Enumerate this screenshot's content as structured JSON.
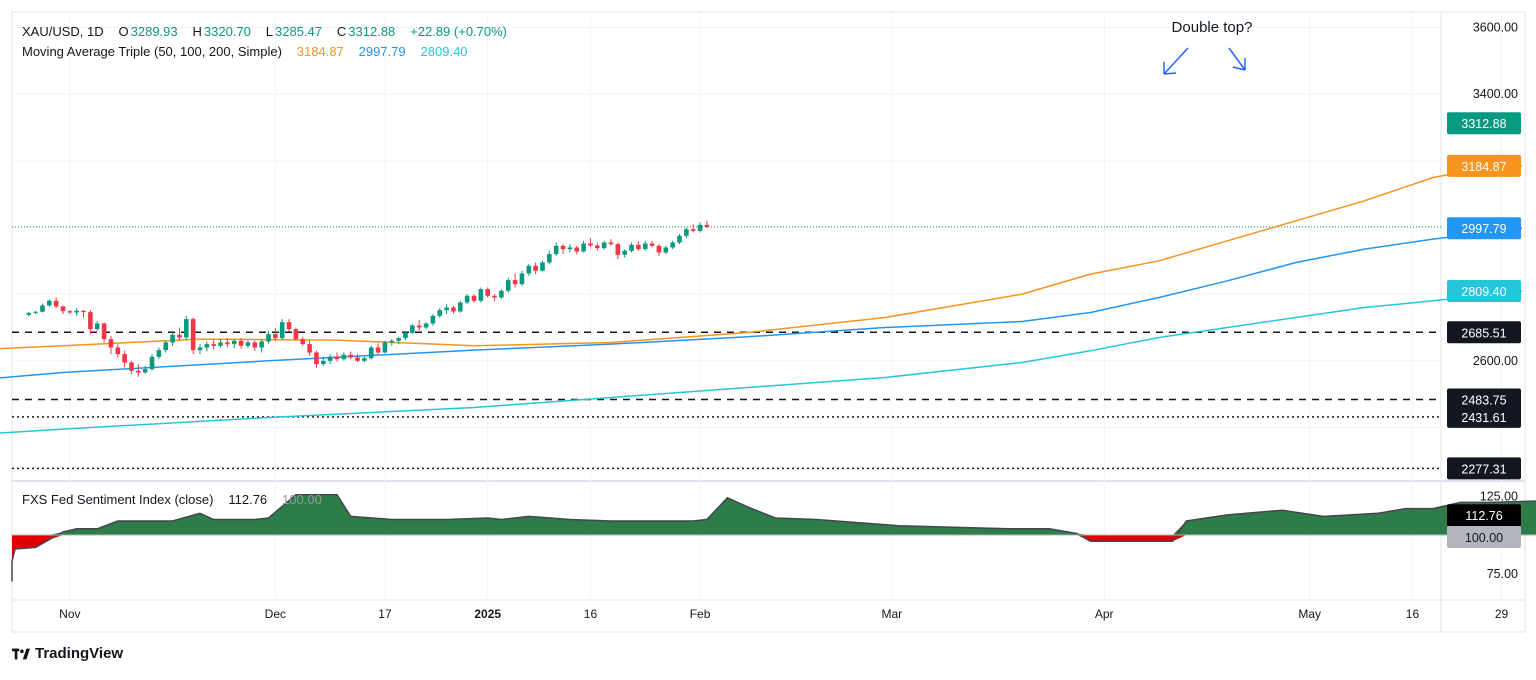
{
  "header": {
    "symbol": "XAU/USD, 1D",
    "o_label": "O",
    "o": "3289.93",
    "h_label": "H",
    "h": "3320.70",
    "l_label": "L",
    "l": "3285.47",
    "c_label": "C",
    "c": "3312.88",
    "change": "+22.89 (+0.70%)",
    "ma_title": "Moving Average Triple (50, 100, 200, Simple)",
    "ma50": "3184.87",
    "ma100": "2997.79",
    "ma200": "2809.40"
  },
  "indicator": {
    "title": "FXS Fed Sentiment Index (close)",
    "value": "112.76",
    "ref": "100.00"
  },
  "annotation": "Double top?",
  "branding": "TradingView",
  "colors": {
    "up": "#089981",
    "down": "#f23645",
    "ma50": "#f7931e",
    "ma100": "#2196f3",
    "ma200": "#26c6da",
    "fill_up": "#2e7d48",
    "fill_down": "#e00000"
  },
  "chart_data": [
    {
      "type": "candlestick",
      "title": "XAU/USD, 1D",
      "ylim": [
        2250,
        3620
      ],
      "y_ticks": [
        "3600.00",
        "3400.00",
        "2600.00"
      ],
      "price_labels": [
        {
          "value": 3312.88,
          "text": "3312.88",
          "kind": "last"
        },
        {
          "value": 3184.87,
          "text": "3184.87",
          "kind": "ma50"
        },
        {
          "value": 2997.79,
          "text": "2997.79",
          "kind": "ma100"
        },
        {
          "value": 2809.4,
          "text": "2809.40",
          "kind": "ma200"
        },
        {
          "value": 2685.51,
          "text": "2685.51",
          "kind": "level"
        },
        {
          "value": 2483.75,
          "text": "2483.75",
          "kind": "level"
        },
        {
          "value": 2431.61,
          "text": "2431.61",
          "kind": "level"
        },
        {
          "value": 2277.31,
          "text": "2277.31",
          "kind": "level"
        }
      ],
      "horizontal_levels": [
        {
          "value": 2685.51,
          "style": "dashed"
        },
        {
          "value": 2483.75,
          "style": "dashed"
        },
        {
          "value": 2431.61,
          "style": "dotted"
        },
        {
          "value": 2277.31,
          "style": "dotted"
        }
      ],
      "x_ticks": [
        {
          "label": "Nov",
          "day": 1
        },
        {
          "label": "Dec",
          "day": 31
        },
        {
          "label": "17",
          "day": 47
        },
        {
          "label": "2025",
          "day": 62
        },
        {
          "label": "16",
          "day": 77
        },
        {
          "label": "Feb",
          "day": 93
        },
        {
          "label": "Mar",
          "day": 121
        },
        {
          "label": "Apr",
          "day": 152
        },
        {
          "label": "May",
          "day": 182
        },
        {
          "label": "16",
          "day": 197
        },
        {
          "label": "29",
          "day": 210
        }
      ],
      "candles": [
        [
          -5,
          2738,
          2746,
          2733,
          2744
        ],
        [
          -4,
          2744,
          2750,
          2740,
          2747
        ],
        [
          -3,
          2747,
          2772,
          2745,
          2766
        ],
        [
          -2,
          2766,
          2784,
          2762,
          2780
        ],
        [
          -1,
          2780,
          2790,
          2758,
          2763
        ],
        [
          0,
          2763,
          2766,
          2740,
          2749
        ],
        [
          1,
          2749,
          2752,
          2740,
          2745
        ],
        [
          2,
          2745,
          2758,
          2735,
          2750
        ],
        [
          3,
          2750,
          2752,
          2730,
          2746
        ],
        [
          4,
          2746,
          2752,
          2680,
          2695
        ],
        [
          5,
          2695,
          2720,
          2690,
          2712
        ],
        [
          6,
          2712,
          2715,
          2655,
          2665
        ],
        [
          7,
          2665,
          2675,
          2620,
          2640
        ],
        [
          8,
          2640,
          2650,
          2610,
          2620
        ],
        [
          9,
          2620,
          2630,
          2580,
          2595
        ],
        [
          10,
          2595,
          2600,
          2560,
          2570
        ],
        [
          11,
          2570,
          2590,
          2552,
          2565
        ],
        [
          12,
          2565,
          2585,
          2560,
          2575
        ],
        [
          13,
          2575,
          2620,
          2570,
          2612
        ],
        [
          14,
          2612,
          2640,
          2605,
          2632
        ],
        [
          15,
          2632,
          2660,
          2625,
          2655
        ],
        [
          16,
          2655,
          2685,
          2645,
          2678
        ],
        [
          17,
          2678,
          2700,
          2660,
          2670
        ],
        [
          18,
          2670,
          2735,
          2662,
          2725
        ],
        [
          19,
          2725,
          2730,
          2620,
          2632
        ],
        [
          20,
          2632,
          2650,
          2620,
          2640
        ],
        [
          21,
          2640,
          2658,
          2628,
          2650
        ],
        [
          22,
          2650,
          2662,
          2635,
          2645
        ],
        [
          23,
          2645,
          2665,
          2640,
          2655
        ],
        [
          24,
          2655,
          2668,
          2640,
          2650
        ],
        [
          25,
          2650,
          2665,
          2638,
          2660
        ],
        [
          26,
          2660,
          2668,
          2636,
          2645
        ],
        [
          27,
          2645,
          2662,
          2638,
          2655
        ],
        [
          28,
          2655,
          2660,
          2630,
          2640
        ],
        [
          29,
          2640,
          2665,
          2625,
          2658
        ],
        [
          30,
          2658,
          2690,
          2652,
          2680
        ],
        [
          31,
          2680,
          2698,
          2660,
          2668
        ],
        [
          32,
          2668,
          2725,
          2662,
          2716
        ],
        [
          33,
          2716,
          2725,
          2688,
          2695
        ],
        [
          34,
          2695,
          2700,
          2660,
          2665
        ],
        [
          35,
          2665,
          2672,
          2645,
          2650
        ],
        [
          36,
          2650,
          2660,
          2615,
          2625
        ],
        [
          37,
          2625,
          2630,
          2580,
          2590
        ],
        [
          38,
          2590,
          2612,
          2585,
          2600
        ],
        [
          39,
          2600,
          2620,
          2590,
          2612
        ],
        [
          40,
          2612,
          2625,
          2598,
          2605
        ],
        [
          41,
          2605,
          2625,
          2600,
          2618
        ],
        [
          42,
          2618,
          2628,
          2605,
          2610
        ],
        [
          43,
          2610,
          2620,
          2596,
          2600
        ],
        [
          44,
          2600,
          2612,
          2595,
          2608
        ],
        [
          45,
          2608,
          2645,
          2604,
          2640
        ],
        [
          46,
          2640,
          2652,
          2620,
          2625
        ],
        [
          47,
          2625,
          2660,
          2622,
          2655
        ],
        [
          48,
          2655,
          2665,
          2645,
          2660
        ],
        [
          49,
          2660,
          2672,
          2650,
          2668
        ],
        [
          50,
          2668,
          2690,
          2662,
          2684
        ],
        [
          51,
          2684,
          2710,
          2680,
          2706
        ],
        [
          52,
          2706,
          2722,
          2690,
          2700
        ],
        [
          53,
          2700,
          2715,
          2695,
          2712
        ],
        [
          54,
          2712,
          2740,
          2705,
          2735
        ],
        [
          55,
          2735,
          2758,
          2730,
          2752
        ],
        [
          56,
          2752,
          2770,
          2740,
          2760
        ],
        [
          57,
          2760,
          2765,
          2742,
          2748
        ],
        [
          58,
          2748,
          2780,
          2744,
          2775
        ],
        [
          59,
          2775,
          2800,
          2770,
          2795
        ],
        [
          60,
          2795,
          2800,
          2775,
          2780
        ],
        [
          61,
          2780,
          2820,
          2775,
          2815
        ],
        [
          62,
          2815,
          2820,
          2790,
          2795
        ],
        [
          63,
          2795,
          2800,
          2780,
          2790
        ],
        [
          64,
          2790,
          2815,
          2785,
          2810
        ],
        [
          65,
          2810,
          2850,
          2805,
          2842
        ],
        [
          66,
          2842,
          2862,
          2820,
          2830
        ],
        [
          67,
          2830,
          2870,
          2825,
          2862
        ],
        [
          68,
          2862,
          2890,
          2855,
          2885
        ],
        [
          69,
          2885,
          2895,
          2860,
          2870
        ],
        [
          70,
          2870,
          2900,
          2868,
          2895
        ],
        [
          71,
          2895,
          2930,
          2890,
          2920
        ],
        [
          72,
          2920,
          2955,
          2915,
          2945
        ],
        [
          73,
          2945,
          2950,
          2920,
          2935
        ],
        [
          74,
          2935,
          2950,
          2925,
          2940
        ],
        [
          75,
          2940,
          2945,
          2920,
          2928
        ],
        [
          76,
          2928,
          2960,
          2925,
          2952
        ],
        [
          77,
          2952,
          2968,
          2942,
          2946
        ],
        [
          78,
          2946,
          2955,
          2930,
          2938
        ],
        [
          79,
          2938,
          2960,
          2934,
          2955
        ],
        [
          80,
          2955,
          2965,
          2945,
          2950
        ],
        [
          81,
          2950,
          2955,
          2905,
          2918
        ],
        [
          82,
          2918,
          2935,
          2910,
          2930
        ],
        [
          83,
          2930,
          2955,
          2925,
          2948
        ],
        [
          84,
          2948,
          2958,
          2930,
          2935
        ],
        [
          85,
          2935,
          2960,
          2930,
          2952
        ],
        [
          86,
          2952,
          2960,
          2940,
          2945
        ],
        [
          87,
          2945,
          2950,
          2915,
          2925
        ],
        [
          88,
          2925,
          2945,
          2920,
          2940
        ],
        [
          89,
          2940,
          2960,
          2935,
          2955
        ],
        [
          90,
          2955,
          2980,
          2950,
          2975
        ],
        [
          91,
          2975,
          3000,
          2968,
          2995
        ],
        [
          92,
          2995,
          3010,
          2985,
          2990
        ],
        [
          93,
          2990,
          3015,
          2985,
          3008
        ],
        [
          94,
          3008,
          3020,
          2998,
          3002
        ]
      ]
    },
    {
      "type": "area",
      "title": "FXS Fed Sentiment Index (close)",
      "ylim": [
        60,
        130
      ],
      "y_ticks": [
        "125.00",
        "75.00"
      ],
      "baseline": 100,
      "points": [
        [
          -40,
          70
        ],
        [
          -14,
          70
        ],
        [
          -12,
          82
        ],
        [
          -10,
          83
        ],
        [
          -7,
          91
        ],
        [
          -4,
          92
        ],
        [
          -2,
          97
        ],
        [
          0,
          102
        ],
        [
          2,
          104
        ],
        [
          5,
          104
        ],
        [
          8,
          109
        ],
        [
          10,
          109
        ],
        [
          14,
          109
        ],
        [
          16,
          109
        ],
        [
          20,
          114
        ],
        [
          22,
          110
        ],
        [
          28,
          110
        ],
        [
          30,
          111
        ],
        [
          34,
          126
        ],
        [
          40,
          126
        ],
        [
          42,
          112
        ],
        [
          48,
          110
        ],
        [
          56,
          110
        ],
        [
          62,
          111
        ],
        [
          64,
          110
        ],
        [
          68,
          112
        ],
        [
          74,
          110
        ],
        [
          80,
          109
        ],
        [
          86,
          109
        ],
        [
          92,
          109
        ],
        [
          94,
          110
        ],
        [
          97,
          124
        ],
        [
          100,
          118
        ],
        [
          104,
          111
        ],
        [
          110,
          110
        ],
        [
          116,
          108
        ],
        [
          122,
          106
        ],
        [
          130,
          105
        ],
        [
          138,
          104
        ],
        [
          144,
          104
        ],
        [
          148,
          101
        ],
        [
          150,
          96
        ],
        [
          156,
          96
        ],
        [
          160,
          96
        ],
        [
          162,
          96
        ],
        [
          164,
          109
        ],
        [
          170,
          113
        ],
        [
          178,
          116
        ],
        [
          184,
          112
        ],
        [
          188,
          113
        ],
        [
          192,
          114
        ],
        [
          196,
          117
        ],
        [
          200,
          117
        ],
        [
          204,
          121
        ],
        [
          208,
          121
        ],
        [
          216,
          122
        ],
        [
          222,
          122
        ],
        [
          228,
          122
        ],
        [
          234,
          121
        ],
        [
          236,
          120
        ],
        [
          240,
          120
        ],
        [
          246,
          121
        ],
        [
          250,
          120
        ],
        [
          254,
          119
        ],
        [
          258,
          113
        ]
      ]
    }
  ]
}
